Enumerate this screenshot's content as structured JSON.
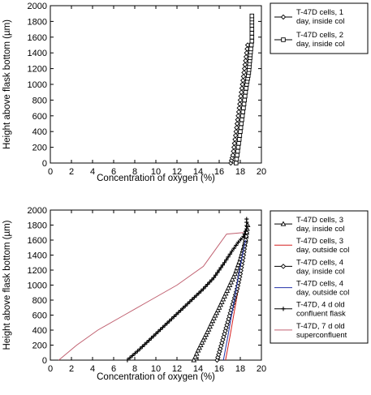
{
  "chart_data": [
    {
      "type": "line",
      "xlabel": "Concentration of oxygen (%)",
      "ylabel": "Height above flask bottom (µm)",
      "xlim": [
        0,
        20
      ],
      "ylim": [
        0,
        2000
      ],
      "xticks": [
        0,
        2,
        4,
        6,
        8,
        10,
        12,
        14,
        16,
        18,
        20
      ],
      "yticks": [
        0,
        200,
        400,
        600,
        800,
        1000,
        1200,
        1400,
        1600,
        1800,
        2000
      ],
      "grid": false,
      "legend_position": "right-outside",
      "series": [
        {
          "name": [
            "T-47D cells, 1",
            "day, inside col"
          ],
          "color": "#000000",
          "marker": "diamond",
          "x": [
            17.1,
            17.3,
            17.4,
            17.5,
            17.6,
            17.7,
            17.8,
            17.9,
            18.0,
            18.1,
            18.2,
            18.3,
            18.4,
            18.5,
            18.6,
            18.7
          ],
          "y": [
            0,
            100,
            200,
            300,
            400,
            500,
            600,
            700,
            800,
            900,
            1000,
            1100,
            1200,
            1300,
            1400,
            1500
          ]
        },
        {
          "name": [
            "T-47D cells, 2",
            "day, inside col"
          ],
          "color": "#000000",
          "marker": "square",
          "x": [
            17.6,
            17.7,
            17.8,
            17.9,
            18.0,
            18.1,
            18.2,
            18.3,
            18.4,
            18.5,
            18.6,
            18.8,
            18.9,
            19.0,
            19.1,
            19.1,
            19.1,
            19.1
          ],
          "y": [
            0,
            100,
            200,
            300,
            400,
            500,
            600,
            700,
            800,
            900,
            1000,
            1150,
            1300,
            1450,
            1550,
            1650,
            1750,
            1870
          ]
        }
      ]
    },
    {
      "type": "line",
      "xlabel": "Concentration of oxygen (%)",
      "ylabel": "Height above flask bottom (µm)",
      "xlim": [
        0,
        20
      ],
      "ylim": [
        0,
        2000
      ],
      "xticks": [
        0,
        2,
        4,
        6,
        8,
        10,
        12,
        14,
        16,
        18,
        20
      ],
      "yticks": [
        0,
        200,
        400,
        600,
        800,
        1000,
        1200,
        1400,
        1600,
        1800,
        2000
      ],
      "grid": false,
      "legend_position": "right-outside",
      "series": [
        {
          "name": [
            "T-47D cells, 3",
            "day, inside col"
          ],
          "color": "#000000",
          "marker": "triangle",
          "x": [
            13.6,
            14.0,
            14.5,
            15.0,
            15.5,
            16.0,
            16.5,
            17.0,
            17.5,
            18.0,
            18.3,
            18.5,
            18.6,
            18.7
          ],
          "y": [
            0,
            130,
            270,
            410,
            560,
            700,
            850,
            1000,
            1150,
            1350,
            1500,
            1600,
            1700,
            1800
          ]
        },
        {
          "name": [
            "T-47D cells, 3",
            "day, outside col"
          ],
          "color": "#d62020",
          "marker": "none",
          "x": [
            16.6,
            17.0,
            17.5,
            18.0,
            18.3,
            18.6
          ],
          "y": [
            0,
            300,
            700,
            1100,
            1400,
            1600
          ]
        },
        {
          "name": [
            "T-47D cells, 4",
            "day, inside col"
          ],
          "color": "#000000",
          "marker": "diamond",
          "x": [
            15.8,
            16.1,
            16.5,
            16.9,
            17.3,
            17.7,
            18.0,
            18.3,
            18.5,
            18.6
          ],
          "y": [
            0,
            150,
            350,
            550,
            750,
            950,
            1150,
            1400,
            1600,
            1700
          ]
        },
        {
          "name": [
            "T-47D cells, 4",
            "day, outside col"
          ],
          "color": "#2233aa",
          "marker": "none",
          "x": [
            16.4,
            16.8,
            17.3,
            17.8,
            18.2,
            18.5
          ],
          "y": [
            0,
            300,
            700,
            1100,
            1400,
            1600
          ]
        },
        {
          "name": [
            "T-47D, 4 d old",
            "confluent flask"
          ],
          "color": "#000000",
          "marker": "plus",
          "x": [
            7.3,
            8.5,
            10.0,
            11.5,
            13.0,
            14.5,
            15.5,
            16.5,
            17.2,
            17.8,
            18.3,
            18.6,
            18.6
          ],
          "y": [
            0,
            150,
            350,
            550,
            750,
            950,
            1100,
            1300,
            1450,
            1570,
            1650,
            1750,
            1880
          ]
        },
        {
          "name": [
            "T-47D, 7 d old",
            "superconfluent"
          ],
          "color": "#c06070",
          "marker": "none",
          "x": [
            0.8,
            2.5,
            4.5,
            7.0,
            9.5,
            12.0,
            14.5,
            16.7,
            18.3
          ],
          "y": [
            0,
            200,
            400,
            600,
            800,
            1000,
            1250,
            1680,
            1700
          ]
        }
      ]
    }
  ]
}
